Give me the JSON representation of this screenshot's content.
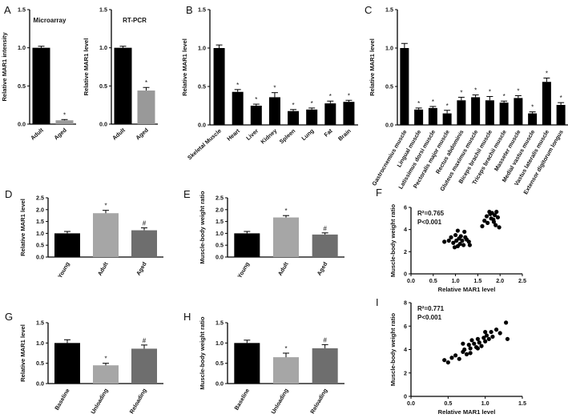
{
  "colors": {
    "black": "#000000",
    "gray": "#999999",
    "dark_gray": "#6e6e6e",
    "light_gray": "#a6a6a6"
  },
  "chart_data": [
    {
      "id": "A1",
      "panel_label": "A",
      "type": "bar",
      "title": "Microarray",
      "ylabel": "Relative MAR1 intensity",
      "ylim": [
        0,
        1.5
      ],
      "yticks": [
        "0.0",
        "0.5",
        "1.0",
        "1.5"
      ],
      "categories": [
        "Adult",
        "Aged"
      ],
      "values": [
        1.0,
        0.05
      ],
      "errors": [
        0.02,
        0.01
      ],
      "significance": [
        "",
        "*"
      ],
      "bar_colors": [
        "black",
        "gray"
      ]
    },
    {
      "id": "A2",
      "panel_label": "",
      "type": "bar",
      "title": "RT-PCR",
      "ylabel": "Relative MAR1 level",
      "ylim": [
        0,
        1.5
      ],
      "yticks": [
        "0.0",
        "0.5",
        "1.0",
        "1.5"
      ],
      "categories": [
        "Adult",
        "Aged"
      ],
      "values": [
        1.0,
        0.44
      ],
      "errors": [
        0.02,
        0.04
      ],
      "significance": [
        "",
        "*"
      ],
      "bar_colors": [
        "black",
        "gray"
      ]
    },
    {
      "id": "B",
      "panel_label": "B",
      "type": "bar",
      "title": "",
      "ylabel": "Relative MAR1 level",
      "ylim": [
        0,
        1.5
      ],
      "yticks": [
        "0.0",
        "0.5",
        "1.0",
        "1.5"
      ],
      "categories": [
        "Skeletal Muscle",
        "Heart",
        "Liver",
        "Kidney",
        "Spleen",
        "Lung",
        "Fat",
        "Brain"
      ],
      "values": [
        1.0,
        0.43,
        0.25,
        0.36,
        0.18,
        0.2,
        0.28,
        0.3
      ],
      "errors": [
        0.04,
        0.03,
        0.02,
        0.06,
        0.02,
        0.02,
        0.03,
        0.02
      ],
      "significance": [
        "",
        "*",
        "*",
        "*",
        "*",
        "*",
        "*",
        "*"
      ],
      "bar_colors": [
        "black",
        "black",
        "black",
        "black",
        "black",
        "black",
        "black",
        "black"
      ]
    },
    {
      "id": "C",
      "panel_label": "C",
      "type": "bar",
      "title": "",
      "ylabel": "Relative MAR1 level",
      "ylim": [
        0,
        1.5
      ],
      "yticks": [
        "0.0",
        "0.5",
        "1.0",
        "1.5"
      ],
      "categories": [
        "Gastrocnemius muscle",
        "Lingual muscle",
        "Latissimus dorsi muscle",
        "Pectoralis major muscle",
        "Rectus abdominis",
        "Gluteus maximus muscle",
        "Biceps brachii muscle",
        "Triceps brachii muscle",
        "Masseter muscle",
        "Medial vastus muscle",
        "Vastus lateralis muscle",
        "Extensor digitorum longus"
      ],
      "values": [
        1.0,
        0.2,
        0.22,
        0.15,
        0.32,
        0.36,
        0.32,
        0.29,
        0.35,
        0.15,
        0.56,
        0.26
      ],
      "errors": [
        0.06,
        0.02,
        0.02,
        0.04,
        0.04,
        0.03,
        0.05,
        0.02,
        0.03,
        0.02,
        0.05,
        0.03
      ],
      "significance": [
        "",
        "*",
        "*",
        "*",
        "*",
        "*",
        "*",
        "*",
        "*",
        "*",
        "*",
        "*"
      ],
      "bar_colors": [
        "black",
        "black",
        "black",
        "black",
        "black",
        "black",
        "black",
        "black",
        "black",
        "black",
        "black",
        "black"
      ]
    },
    {
      "id": "D",
      "panel_label": "D",
      "type": "bar",
      "title": "",
      "ylabel": "Relative MAR1 level",
      "ylim": [
        0,
        2.5
      ],
      "yticks": [
        "0.0",
        "0.5",
        "1.0",
        "1.5",
        "2.0",
        "2.5"
      ],
      "categories": [
        "Young",
        "Adult",
        "Aged"
      ],
      "values": [
        1.0,
        1.85,
        1.13
      ],
      "errors": [
        0.08,
        0.12,
        0.1
      ],
      "significance": [
        "",
        "*",
        "#"
      ],
      "bar_colors": [
        "black",
        "light_gray",
        "dark_gray"
      ]
    },
    {
      "id": "E",
      "panel_label": "E",
      "type": "bar",
      "title": "",
      "ylabel": "Muscle-body weight ratio",
      "ylim": [
        0,
        2.5
      ],
      "yticks": [
        "0.0",
        "0.5",
        "1.0",
        "1.5",
        "2.0",
        "2.5"
      ],
      "categories": [
        "Young",
        "Adult",
        "Aged"
      ],
      "values": [
        1.0,
        1.67,
        0.95
      ],
      "errors": [
        0.08,
        0.08,
        0.07
      ],
      "significance": [
        "",
        "*",
        "#"
      ],
      "bar_colors": [
        "black",
        "light_gray",
        "dark_gray"
      ]
    },
    {
      "id": "G",
      "panel_label": "G",
      "type": "bar",
      "title": "",
      "ylabel": "Relative MAR1 level",
      "ylim": [
        0,
        1.5
      ],
      "yticks": [
        "0.0",
        "0.5",
        "1.0",
        "1.5"
      ],
      "categories": [
        "Baseline",
        "Unloading",
        "Reloading"
      ],
      "values": [
        1.0,
        0.45,
        0.86
      ],
      "errors": [
        0.08,
        0.05,
        0.09
      ],
      "significance": [
        "",
        "*",
        "#"
      ],
      "bar_colors": [
        "black",
        "light_gray",
        "dark_gray"
      ]
    },
    {
      "id": "H",
      "panel_label": "H",
      "type": "bar",
      "title": "",
      "ylabel": "Muscle-body weight ratio",
      "ylim": [
        0,
        1.5
      ],
      "yticks": [
        "0.0",
        "0.5",
        "1.0",
        "1.5"
      ],
      "categories": [
        "Baseline",
        "Unloading",
        "Reloading"
      ],
      "values": [
        1.0,
        0.65,
        0.87
      ],
      "errors": [
        0.07,
        0.1,
        0.09
      ],
      "significance": [
        "",
        "*",
        "#"
      ],
      "bar_colors": [
        "black",
        "light_gray",
        "dark_gray"
      ]
    },
    {
      "id": "F",
      "panel_label": "F",
      "type": "scatter",
      "title": "",
      "ylabel": "Muscle-body weight ratio",
      "xlabel": "Relative MAR1 level",
      "xlim": [
        0,
        2.5
      ],
      "ylim": [
        0,
        6
      ],
      "xticks": [
        "0.0",
        "0.5",
        "1.0",
        "1.5",
        "2.0",
        "2.5"
      ],
      "yticks": [
        "0",
        "2",
        "4",
        "6"
      ],
      "r2_text": "R²=0.765",
      "p_text": "P<0.001",
      "points": [
        [
          0.75,
          2.9
        ],
        [
          0.85,
          3.0
        ],
        [
          0.9,
          3.3
        ],
        [
          0.95,
          2.8
        ],
        [
          1.0,
          3.5
        ],
        [
          1.02,
          3.0
        ],
        [
          1.05,
          2.5
        ],
        [
          1.08,
          3.2
        ],
        [
          1.1,
          2.7
        ],
        [
          1.12,
          3.4
        ],
        [
          1.15,
          3.0
        ],
        [
          1.18,
          2.6
        ],
        [
          1.2,
          3.8
        ],
        [
          1.25,
          3.1
        ],
        [
          1.3,
          2.9
        ],
        [
          1.05,
          3.9
        ],
        [
          0.98,
          2.4
        ],
        [
          1.22,
          3.3
        ],
        [
          1.32,
          2.6
        ],
        [
          1.6,
          4.3
        ],
        [
          1.65,
          4.8
        ],
        [
          1.7,
          5.2
        ],
        [
          1.72,
          4.6
        ],
        [
          1.78,
          5.4
        ],
        [
          1.8,
          5.0
        ],
        [
          1.82,
          5.5
        ],
        [
          1.85,
          4.9
        ],
        [
          1.88,
          5.3
        ],
        [
          1.9,
          4.4
        ],
        [
          1.92,
          5.6
        ],
        [
          1.95,
          5.1
        ],
        [
          1.98,
          4.2
        ],
        [
          1.76,
          5.6
        ],
        [
          1.86,
          4.7
        ]
      ]
    },
    {
      "id": "I",
      "panel_label": "I",
      "type": "scatter",
      "title": "",
      "ylabel": "Muscle-body weight ratio",
      "xlabel": "Relative MAR1 level",
      "xlim": [
        0,
        1.5
      ],
      "ylim": [
        0,
        8
      ],
      "xticks": [
        "0.0",
        "0.5",
        "1.0",
        "1.5"
      ],
      "yticks": [
        "0",
        "2",
        "4",
        "6",
        "8"
      ],
      "r2_text": "R²=0.771",
      "p_text": "P<0.001",
      "points": [
        [
          0.45,
          3.1
        ],
        [
          0.5,
          2.9
        ],
        [
          0.55,
          3.3
        ],
        [
          0.6,
          3.5
        ],
        [
          0.65,
          3.2
        ],
        [
          0.7,
          3.8
        ],
        [
          0.72,
          4.0
        ],
        [
          0.75,
          3.6
        ],
        [
          0.78,
          4.4
        ],
        [
          0.8,
          4.1
        ],
        [
          0.82,
          4.8
        ],
        [
          0.85,
          4.5
        ],
        [
          0.88,
          4.2
        ],
        [
          0.9,
          4.9
        ],
        [
          0.92,
          4.6
        ],
        [
          0.95,
          4.3
        ],
        [
          0.98,
          5.0
        ],
        [
          1.0,
          4.7
        ],
        [
          1.02,
          5.2
        ],
        [
          1.05,
          4.9
        ],
        [
          1.08,
          5.5
        ],
        [
          1.1,
          5.1
        ],
        [
          1.15,
          5.7
        ],
        [
          1.2,
          5.4
        ],
        [
          1.28,
          6.3
        ],
        [
          1.3,
          4.9
        ],
        [
          0.8,
          3.7
        ],
        [
          0.9,
          4.1
        ],
        [
          1.0,
          5.5
        ],
        [
          0.7,
          4.5
        ]
      ]
    }
  ]
}
